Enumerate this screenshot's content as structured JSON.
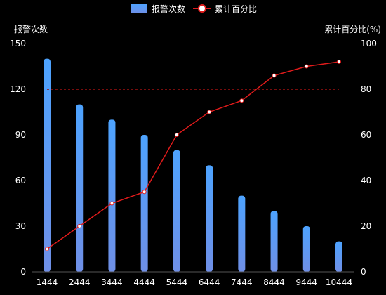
{
  "chart_data": {
    "type": "bar",
    "categories": [
      "1444",
      "2444",
      "3444",
      "4444",
      "5444",
      "6444",
      "7444",
      "8444",
      "9444",
      "10444"
    ],
    "series": [
      {
        "name": "报警次数",
        "type": "bar",
        "axis": "left",
        "values": [
          140,
          110,
          100,
          90,
          80,
          70,
          50,
          40,
          30,
          20
        ]
      },
      {
        "name": "累计百分比",
        "type": "line",
        "axis": "right",
        "values": [
          10,
          20,
          30,
          35,
          60,
          70,
          75,
          86,
          90,
          92
        ]
      }
    ],
    "threshold": {
      "axis": "right",
      "value": 80,
      "style": "dashed"
    },
    "left_axis": {
      "label": "报警次数",
      "ylim": [
        0,
        150
      ],
      "ticks": [
        0,
        30,
        60,
        90,
        120,
        150
      ]
    },
    "right_axis": {
      "label": "累计百分比(%)",
      "ylim": [
        0,
        100
      ],
      "ticks": [
        0,
        20,
        40,
        60,
        80,
        100
      ]
    },
    "legend": {
      "position": "top-center"
    },
    "grid": false,
    "colors": {
      "bar_top": "#4da3ff",
      "bar_bottom": "#6f8fe6",
      "line": "#e01b1b",
      "marker_fill": "#ffffff",
      "threshold": "#a01010",
      "axis": "#555555",
      "background": "#000000"
    }
  }
}
